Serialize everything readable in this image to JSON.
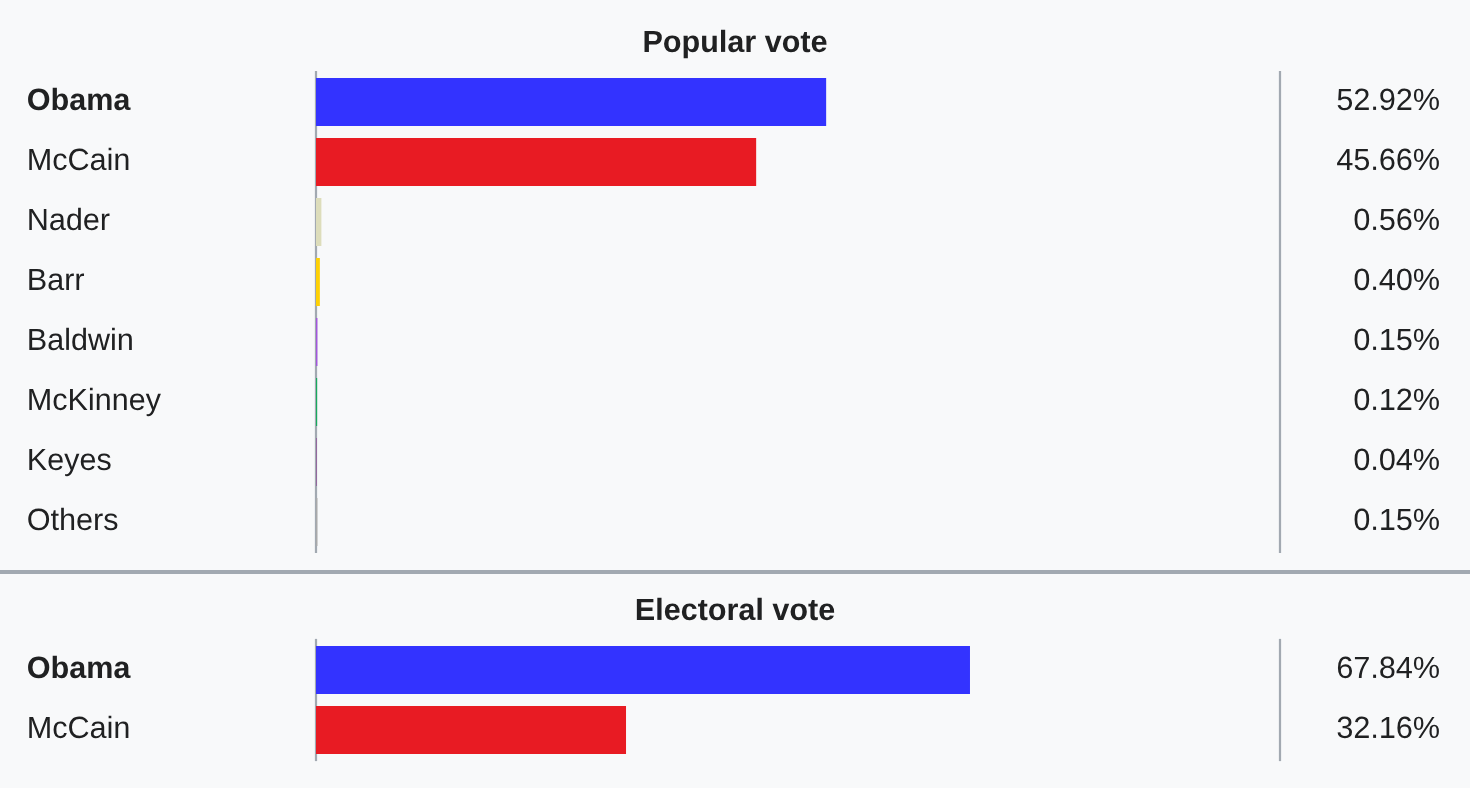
{
  "chart_data": [
    {
      "type": "bar",
      "orientation": "horizontal",
      "title": "Popular vote",
      "categories": [
        "Obama",
        "McCain",
        "Nader",
        "Barr",
        "Baldwin",
        "McKinney",
        "Keyes",
        "Others"
      ],
      "values": [
        52.92,
        45.66,
        0.56,
        0.4,
        0.15,
        0.12,
        0.04,
        0.15
      ],
      "colors": [
        "#3333ff",
        "#e81b23",
        "#ddddbb",
        "#fed105",
        "#a356de",
        "#17aa5c",
        "#800080",
        "#aaaaaa"
      ],
      "value_labels": [
        "52.92%",
        "45.66%",
        "0.56%",
        "0.40%",
        "0.15%",
        "0.12%",
        "0.04%",
        "0.15%"
      ],
      "xlim": [
        0,
        100
      ],
      "tick_labels": "y",
      "legend": false
    },
    {
      "type": "bar",
      "orientation": "horizontal",
      "title": "Electoral vote",
      "categories": [
        "Obama",
        "McCain"
      ],
      "values": [
        67.84,
        32.16
      ],
      "colors": [
        "#3333ff",
        "#e81b23"
      ],
      "value_labels": [
        "67.84%",
        "32.16%"
      ],
      "xlim": [
        0,
        100
      ],
      "tick_labels": "y",
      "legend": false
    }
  ]
}
